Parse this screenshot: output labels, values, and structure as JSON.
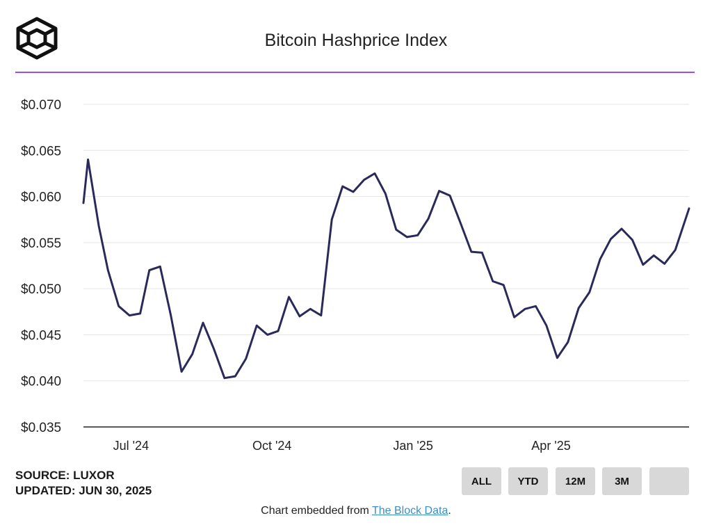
{
  "header": {
    "title": "Bitcoin Hashprice Index"
  },
  "colors": {
    "accent": "#9b4de6",
    "line": "#2a2a5a",
    "grid": "#e6e6e6",
    "button_bg": "#d8d8d8",
    "link": "#3a8fc4"
  },
  "footer": {
    "source": "SOURCE: LUXOR",
    "updated": "UPDATED: JUN 30, 2025",
    "ranges": [
      "ALL",
      "YTD",
      "12M",
      "3M",
      ""
    ],
    "embed_prefix": "Chart embedded from ",
    "embed_link": "The Block Data",
    "embed_suffix": "."
  },
  "chart_data": {
    "type": "line",
    "title": "Bitcoin Hashprice Index",
    "xlabel": "",
    "ylabel": "",
    "ylim": [
      0.035,
      0.07
    ],
    "yticks": [
      0.035,
      0.04,
      0.045,
      0.05,
      0.055,
      0.06,
      0.065,
      0.07
    ],
    "ytick_labels": [
      "$0.035",
      "$0.040",
      "$0.045",
      "$0.050",
      "$0.055",
      "$0.060",
      "$0.065",
      "$0.070"
    ],
    "xlim": [
      "2024-05-31",
      "2025-06-30"
    ],
    "xticks": [
      "2024-07-01",
      "2024-10-01",
      "2025-01-01",
      "2025-04-01"
    ],
    "xtick_labels": [
      "Jul '24",
      "Oct '24",
      "Jan '25",
      "Apr '25"
    ],
    "grid": true,
    "legend": "none",
    "series": [
      {
        "name": "",
        "points": [
          [
            "2024-05-31",
            0.0593
          ],
          [
            "2024-06-03",
            0.064
          ],
          [
            "2024-06-10",
            0.0568
          ],
          [
            "2024-06-16",
            0.052
          ],
          [
            "2024-06-23",
            0.0481
          ],
          [
            "2024-06-30",
            0.0471
          ],
          [
            "2024-07-07",
            0.0473
          ],
          [
            "2024-07-13",
            0.052
          ],
          [
            "2024-07-20",
            0.0524
          ],
          [
            "2024-07-27",
            0.0471
          ],
          [
            "2024-08-03",
            0.041
          ],
          [
            "2024-08-10",
            0.0429
          ],
          [
            "2024-08-17",
            0.0463
          ],
          [
            "2024-08-24",
            0.0435
          ],
          [
            "2024-08-31",
            0.0403
          ],
          [
            "2024-09-07",
            0.0405
          ],
          [
            "2024-09-14",
            0.0424
          ],
          [
            "2024-09-21",
            0.046
          ],
          [
            "2024-09-28",
            0.045
          ],
          [
            "2024-10-05",
            0.0454
          ],
          [
            "2024-10-12",
            0.0491
          ],
          [
            "2024-10-19",
            0.047
          ],
          [
            "2024-10-26",
            0.0478
          ],
          [
            "2024-11-02",
            0.0471
          ],
          [
            "2024-11-09",
            0.0575
          ],
          [
            "2024-11-16",
            0.0611
          ],
          [
            "2024-11-23",
            0.0605
          ],
          [
            "2024-11-30",
            0.0618
          ],
          [
            "2024-12-07",
            0.0625
          ],
          [
            "2024-12-14",
            0.0603
          ],
          [
            "2024-12-21",
            0.0564
          ],
          [
            "2024-12-28",
            0.0556
          ],
          [
            "2025-01-04",
            0.0558
          ],
          [
            "2025-01-11",
            0.0576
          ],
          [
            "2025-01-18",
            0.0606
          ],
          [
            "2025-01-25",
            0.0601
          ],
          [
            "2025-02-01",
            0.0571
          ],
          [
            "2025-02-08",
            0.054
          ],
          [
            "2025-02-15",
            0.0539
          ],
          [
            "2025-02-22",
            0.0508
          ],
          [
            "2025-03-01",
            0.0504
          ],
          [
            "2025-03-08",
            0.0469
          ],
          [
            "2025-03-15",
            0.0478
          ],
          [
            "2025-03-22",
            0.0481
          ],
          [
            "2025-03-29",
            0.046
          ],
          [
            "2025-04-05",
            0.0425
          ],
          [
            "2025-04-12",
            0.0442
          ],
          [
            "2025-04-19",
            0.0479
          ],
          [
            "2025-04-26",
            0.0496
          ],
          [
            "2025-05-03",
            0.0532
          ],
          [
            "2025-05-10",
            0.0554
          ],
          [
            "2025-05-17",
            0.0565
          ],
          [
            "2025-05-24",
            0.0553
          ],
          [
            "2025-05-31",
            0.0526
          ],
          [
            "2025-06-07",
            0.0536
          ],
          [
            "2025-06-14",
            0.0527
          ],
          [
            "2025-06-21",
            0.0542
          ],
          [
            "2025-06-30",
            0.0587
          ]
        ]
      }
    ]
  }
}
